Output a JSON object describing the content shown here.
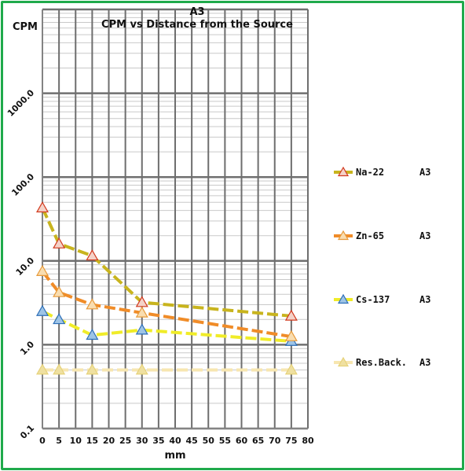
{
  "chart_data": {
    "type": "line",
    "super_title": "A3",
    "title": "CPM vs Distance from the Source",
    "ylabel": "CPM",
    "xlabel": "mm",
    "y_scale": "log",
    "ylim": [
      0.1,
      10000
    ],
    "xlim": [
      0,
      80
    ],
    "x_ticks": [
      "0",
      "5",
      "10",
      "15",
      "20",
      "25",
      "30",
      "35",
      "40",
      "45",
      "50",
      "55",
      "60",
      "65",
      "70",
      "75",
      "80"
    ],
    "y_ticks": [
      "0.1",
      "1.0",
      "10.0",
      "100.0",
      "1000.0"
    ],
    "legend_position": "right",
    "grid": true,
    "series": [
      {
        "name": "Na-22",
        "tag": "A3",
        "line_color": "#c8b41e",
        "marker_color": "#f4d2c8",
        "marker_edge": "#d23a1e",
        "x": [
          0,
          5,
          15,
          30,
          75
        ],
        "y": [
          43,
          16,
          11.5,
          3.2,
          2.2
        ]
      },
      {
        "name": "Zn-65",
        "tag": "A3",
        "line_color": "#f08c28",
        "marker_color": "#f9ddb0",
        "marker_edge": "#e79a3a",
        "x": [
          0,
          5,
          15,
          30,
          75
        ],
        "y": [
          7.5,
          4.2,
          3.0,
          2.4,
          1.25
        ]
      },
      {
        "name": "Cs-137",
        "tag": "A3",
        "line_color": "#f0ec28",
        "marker_color": "#9ec4e6",
        "marker_edge": "#2e6fb8",
        "x": [
          0,
          5,
          15,
          30,
          75
        ],
        "y": [
          2.5,
          2.0,
          1.3,
          1.5,
          1.1
        ]
      },
      {
        "name": "Res.Back.",
        "tag": "A3",
        "line_color": "#f7e6b0",
        "marker_color": "#efe0a0",
        "marker_edge": "#e6d27a",
        "x": [
          0,
          5,
          15,
          30,
          75
        ],
        "y": [
          0.5,
          0.5,
          0.5,
          0.5,
          0.5
        ]
      }
    ]
  }
}
